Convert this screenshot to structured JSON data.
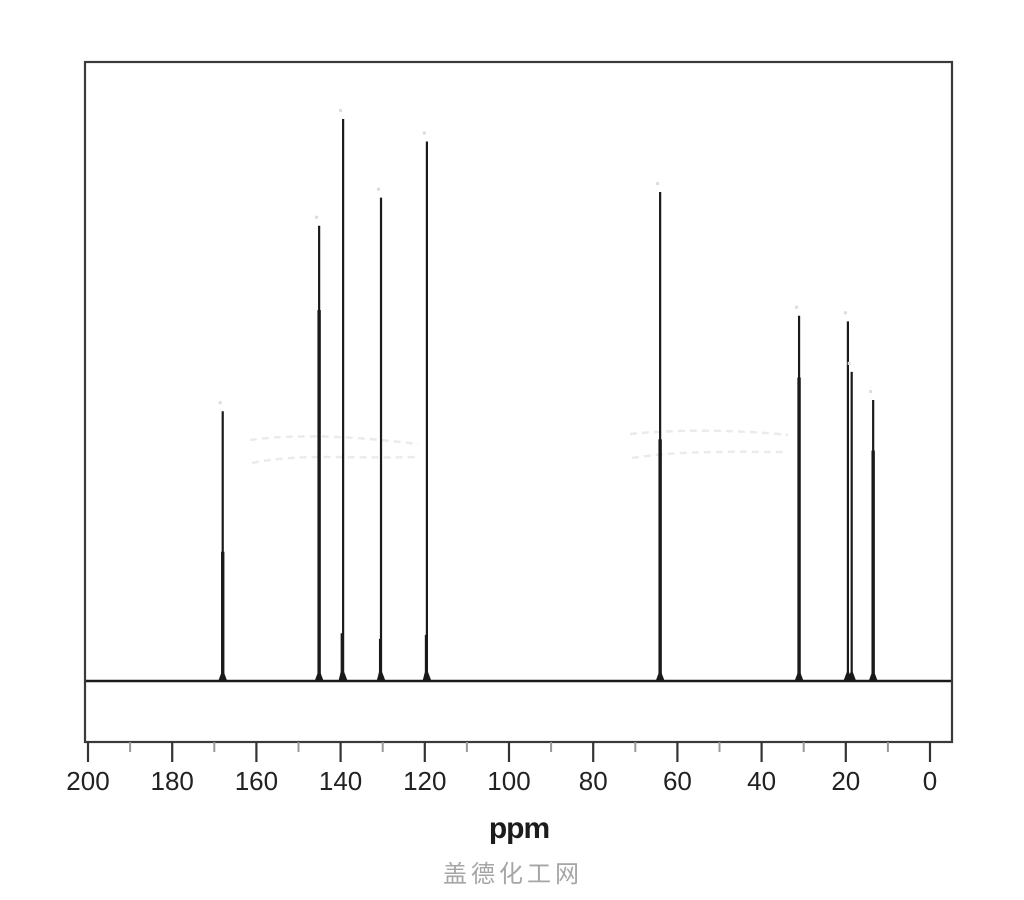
{
  "chart_data": {
    "type": "line",
    "subtype": "13C-NMR-spectrum",
    "title": "",
    "xlabel": "ppm",
    "ylabel": "",
    "grid": false,
    "legend": false,
    "x_axis": {
      "min": 0,
      "max": 200,
      "reversed": true,
      "major_tick_step": 20,
      "minor_tick_step": 10,
      "tick_labels": [
        "200",
        "180",
        "160",
        "140",
        "120",
        "100",
        "80",
        "60",
        "40",
        "20",
        "0"
      ],
      "major_tick_ppms": [
        200,
        180,
        160,
        140,
        120,
        100,
        80,
        60,
        40,
        20,
        0
      ],
      "minor_tick_ppms": [
        190,
        170,
        150,
        130,
        110,
        90,
        70,
        50,
        30,
        10
      ]
    },
    "y_axis": {
      "visible": false,
      "intensity_scale": "relative, 0-1 of tallest peak"
    },
    "peaks": [
      {
        "ppm": 168.0,
        "intensity": 0.48,
        "base_overlap": 0.23
      },
      {
        "ppm": 145.1,
        "intensity": 0.81,
        "base_overlap": 0.66
      },
      {
        "ppm": 139.4,
        "intensity": 1.0
      },
      {
        "ppm": 130.4,
        "intensity": 0.86
      },
      {
        "ppm": 119.5,
        "intensity": 0.96
      },
      {
        "ppm": 64.1,
        "intensity": 0.87,
        "base_overlap": 0.43
      },
      {
        "ppm": 31.1,
        "intensity": 0.65,
        "base_overlap": 0.54
      },
      {
        "ppm": 19.5,
        "intensity": 0.64
      },
      {
        "ppm": 18.6,
        "intensity": 0.55
      },
      {
        "ppm": 13.5,
        "intensity": 0.5,
        "base_overlap": 0.41
      }
    ],
    "minor_peaks": [
      {
        "ppm": 139.8,
        "intensity": 0.085
      },
      {
        "ppm": 130.7,
        "intensity": 0.075
      },
      {
        "ppm": 119.8,
        "intensity": 0.082
      }
    ],
    "colors": {
      "trace": "#1a1a1a",
      "frame": "#3a3a3a",
      "major_tick": "#333333",
      "minor_tick": "#999999",
      "tick_label": "#222222",
      "background": "#ffffff"
    }
  },
  "labels": {
    "x_axis_unit": "ppm"
  },
  "watermark": {
    "text": "盖德化工网",
    "color": "#a6a6a6"
  }
}
